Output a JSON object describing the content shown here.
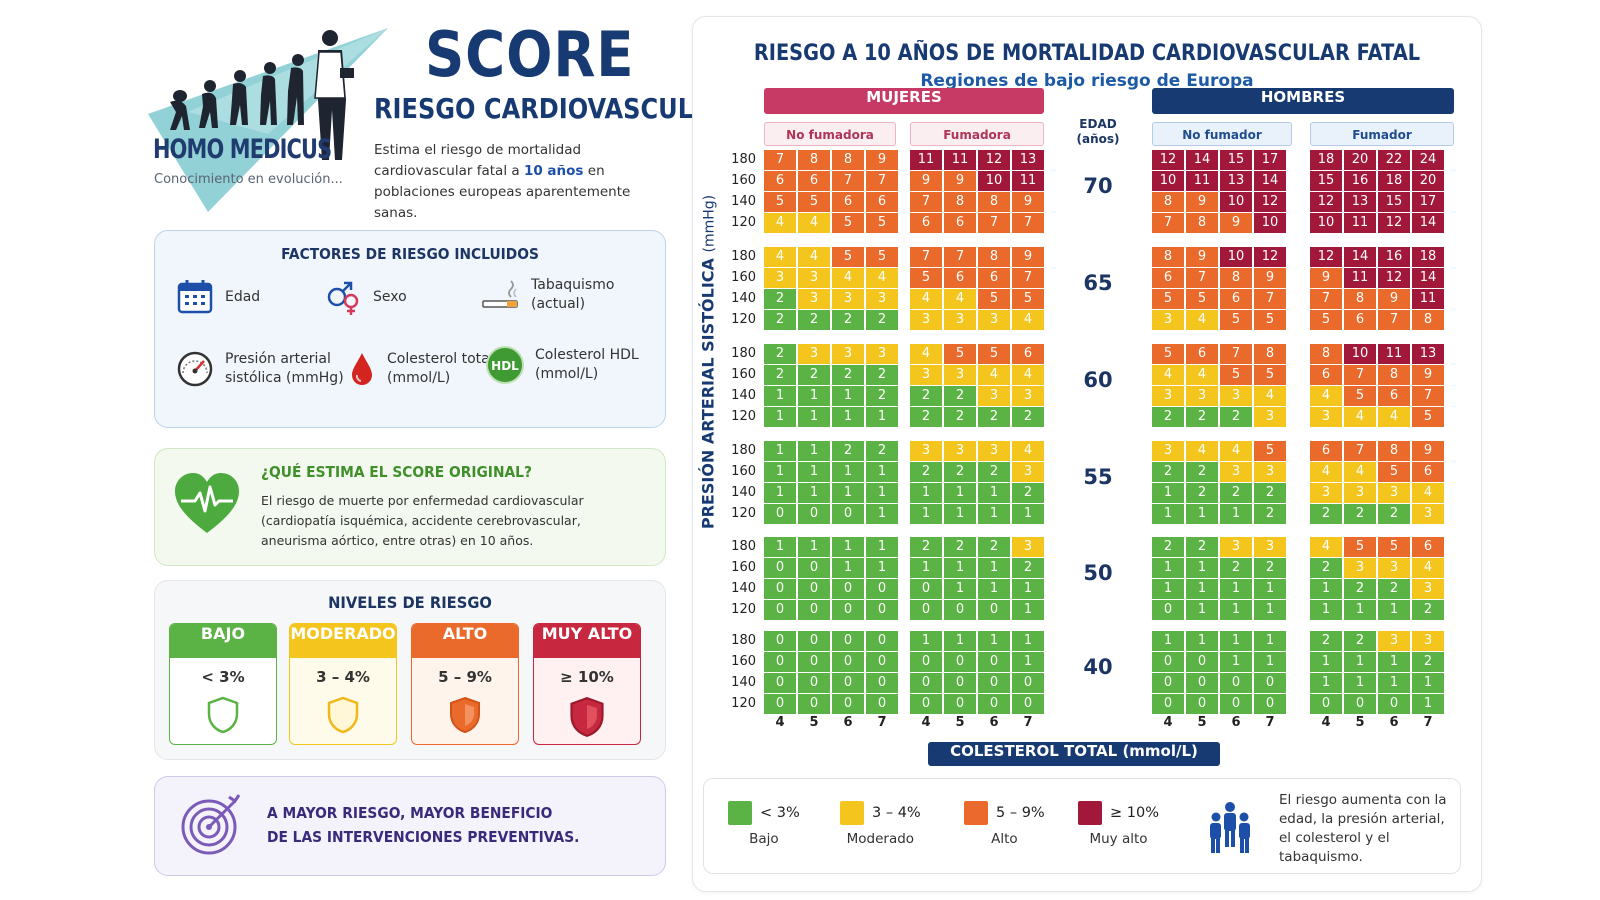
{
  "brand": {
    "name": "HOMO MEDICUS",
    "tagline": "Conocimiento en evolución...",
    "title": "SCORE",
    "subtitle": "RIESGO CARDIOVASCULAR",
    "description_pre": "Estima el riesgo de mortalidad cardiovascular fatal a",
    "description_highlight": "10 años",
    "description_post": "en poblaciones europeas aparentemente sanas."
  },
  "factors": {
    "title": "FACTORES DE RIESGO INCLUIDOS",
    "items": [
      {
        "label": "Edad",
        "icon": "calendar-icon"
      },
      {
        "label": "Sexo",
        "icon": "gender-icon"
      },
      {
        "label": "Tabaquismo\n(actual)",
        "icon": "cigarette-icon"
      },
      {
        "label": "Presión arterial\nsistólica (mmHg)",
        "icon": "gauge-icon"
      },
      {
        "label": "Colesterol total\n(mmol/L)",
        "icon": "blood-drop-icon"
      },
      {
        "label": "Colesterol HDL\n(mmol/L)",
        "icon": "hdl-icon",
        "badge": "HDL"
      }
    ]
  },
  "what": {
    "title": "¿QUÉ ESTIMA EL SCORE ORIGINAL?",
    "text": "El riesgo de muerte por enfermedad cardiovascular (cardiopatía isquémica, accidente cerebrovascular, aneurisma aórtico, entre otras) en 10 años."
  },
  "levels": {
    "title": "NIVELES DE RIESGO",
    "items": [
      {
        "name": "BAJO",
        "range": "< 3%",
        "color": "#5ab344"
      },
      {
        "name": "MODERADO",
        "range": "3 – 4%",
        "color": "#f4c51d"
      },
      {
        "name": "ALTO",
        "range": "5 – 9%",
        "color": "#ea6a2c"
      },
      {
        "name": "MUY ALTO",
        "range": "≥ 10%",
        "color": "#c8283f"
      }
    ]
  },
  "benefit": {
    "line1": "A MAYOR RIESGO, MAYOR BENEFICIO",
    "line2": "DE LAS INTERVENCIONES PREVENTIVAS."
  },
  "panel": {
    "title": "RIESGO A 10 AÑOS DE MORTALIDAD CARDIOVASCULAR FATAL",
    "subtitle": "Regiones de bajo riesgo de Europa",
    "women": "MUJERES",
    "men": "HOMBRES",
    "non_smoker_f": "No fumadora",
    "smoker_f": "Fumadora",
    "non_smoker_m": "No fumador",
    "smoker_m": "Fumador",
    "age_header": "EDAD\n(años)",
    "y_axis": "PRESIÓN ARTERIAL SISTÓLICA",
    "y_axis_unit": "(mmHg)",
    "x_axis": "COLESTEROL TOTAL (mmol/L)",
    "cholesterol": [
      "4",
      "5",
      "6",
      "7"
    ],
    "bp": [
      "180",
      "160",
      "140",
      "120"
    ],
    "ages": [
      "70",
      "65",
      "60",
      "55",
      "50",
      "40"
    ]
  },
  "chart_data": {
    "type": "table",
    "title": "RIESGO A 10 AÑOS DE MORTALIDAD CARDIOVASCULAR FATAL",
    "subtitle": "Regiones de bajo riesgo de Europa",
    "row_axis": "PRESIÓN ARTERIAL SISTÓLICA (mmHg)",
    "col_axis": "COLESTEROL TOTAL (mmol/L)",
    "cholesterol": [
      4,
      5,
      6,
      7
    ],
    "bp": [
      180,
      160,
      140,
      120
    ],
    "color_scale": {
      "<3": "#5ab344",
      "3-4": "#f4c51d",
      "5-9": "#ea6a2c",
      ">=10": "#a1183a"
    },
    "ages": [
      {
        "age": 70,
        "women_non_smoker": [
          [
            7,
            8,
            8,
            9
          ],
          [
            6,
            6,
            7,
            7
          ],
          [
            5,
            5,
            6,
            6
          ],
          [
            4,
            4,
            5,
            5
          ]
        ],
        "women_smoker": [
          [
            11,
            11,
            12,
            13
          ],
          [
            9,
            9,
            10,
            11
          ],
          [
            7,
            8,
            8,
            9
          ],
          [
            6,
            6,
            7,
            7
          ]
        ],
        "men_non_smoker": [
          [
            12,
            14,
            15,
            17
          ],
          [
            10,
            11,
            13,
            14
          ],
          [
            8,
            9,
            10,
            12
          ],
          [
            7,
            8,
            9,
            10
          ]
        ],
        "men_smoker": [
          [
            18,
            20,
            22,
            24
          ],
          [
            15,
            16,
            18,
            20
          ],
          [
            12,
            13,
            15,
            17
          ],
          [
            10,
            11,
            12,
            14
          ]
        ]
      },
      {
        "age": 65,
        "women_non_smoker": [
          [
            4,
            4,
            5,
            5
          ],
          [
            3,
            3,
            4,
            4
          ],
          [
            2,
            3,
            3,
            3
          ],
          [
            2,
            2,
            2,
            2
          ]
        ],
        "women_smoker": [
          [
            7,
            7,
            8,
            9
          ],
          [
            5,
            6,
            6,
            7
          ],
          [
            4,
            4,
            5,
            5
          ],
          [
            3,
            3,
            3,
            4
          ]
        ],
        "men_non_smoker": [
          [
            8,
            9,
            10,
            12
          ],
          [
            6,
            7,
            8,
            9
          ],
          [
            5,
            5,
            6,
            7
          ],
          [
            3,
            4,
            5,
            5
          ]
        ],
        "men_smoker": [
          [
            12,
            14,
            16,
            18
          ],
          [
            9,
            11,
            12,
            14
          ],
          [
            7,
            8,
            9,
            11
          ],
          [
            5,
            6,
            7,
            8
          ]
        ]
      },
      {
        "age": 60,
        "women_non_smoker": [
          [
            2,
            3,
            3,
            3
          ],
          [
            2,
            2,
            2,
            2
          ],
          [
            1,
            1,
            1,
            2
          ],
          [
            1,
            1,
            1,
            1
          ]
        ],
        "women_smoker": [
          [
            4,
            5,
            5,
            6
          ],
          [
            3,
            3,
            4,
            4
          ],
          [
            2,
            2,
            3,
            3
          ],
          [
            2,
            2,
            2,
            2
          ]
        ],
        "men_non_smoker": [
          [
            5,
            6,
            7,
            8
          ],
          [
            4,
            4,
            5,
            5
          ],
          [
            3,
            3,
            3,
            4
          ],
          [
            2,
            2,
            2,
            3
          ]
        ],
        "men_smoker": [
          [
            8,
            10,
            11,
            13
          ],
          [
            6,
            7,
            8,
            9
          ],
          [
            4,
            5,
            6,
            7
          ],
          [
            3,
            4,
            4,
            5
          ]
        ]
      },
      {
        "age": 55,
        "women_non_smoker": [
          [
            1,
            1,
            2,
            2
          ],
          [
            1,
            1,
            1,
            1
          ],
          [
            1,
            1,
            1,
            1
          ],
          [
            0,
            0,
            0,
            1
          ]
        ],
        "women_smoker": [
          [
            3,
            3,
            3,
            4
          ],
          [
            2,
            2,
            2,
            3
          ],
          [
            1,
            1,
            1,
            2
          ],
          [
            1,
            1,
            1,
            1
          ]
        ],
        "men_non_smoker": [
          [
            3,
            4,
            4,
            5
          ],
          [
            2,
            2,
            3,
            3
          ],
          [
            1,
            2,
            2,
            2
          ],
          [
            1,
            1,
            1,
            2
          ]
        ],
        "men_smoker": [
          [
            6,
            7,
            8,
            9
          ],
          [
            4,
            4,
            5,
            6
          ],
          [
            3,
            3,
            3,
            4
          ],
          [
            2,
            2,
            2,
            3
          ]
        ]
      },
      {
        "age": 50,
        "women_non_smoker": [
          [
            1,
            1,
            1,
            1
          ],
          [
            0,
            0,
            1,
            1
          ],
          [
            0,
            0,
            0,
            0
          ],
          [
            0,
            0,
            0,
            0
          ]
        ],
        "women_smoker": [
          [
            2,
            2,
            2,
            3
          ],
          [
            1,
            1,
            1,
            2
          ],
          [
            0,
            1,
            1,
            1
          ],
          [
            0,
            0,
            0,
            1
          ]
        ],
        "men_non_smoker": [
          [
            2,
            2,
            3,
            3
          ],
          [
            1,
            1,
            2,
            2
          ],
          [
            1,
            1,
            1,
            1
          ],
          [
            0,
            1,
            1,
            1
          ]
        ],
        "men_smoker": [
          [
            4,
            5,
            5,
            6
          ],
          [
            2,
            3,
            3,
            4
          ],
          [
            1,
            2,
            2,
            3
          ],
          [
            1,
            1,
            1,
            2
          ]
        ]
      },
      {
        "age": 40,
        "women_non_smoker": [
          [
            0,
            0,
            0,
            0
          ],
          [
            0,
            0,
            0,
            0
          ],
          [
            0,
            0,
            0,
            0
          ],
          [
            0,
            0,
            0,
            0
          ]
        ],
        "women_smoker": [
          [
            1,
            1,
            1,
            1
          ],
          [
            0,
            0,
            0,
            1
          ],
          [
            0,
            0,
            0,
            0
          ],
          [
            0,
            0,
            0,
            0
          ]
        ],
        "men_non_smoker": [
          [
            1,
            1,
            1,
            1
          ],
          [
            0,
            0,
            1,
            1
          ],
          [
            0,
            0,
            0,
            0
          ],
          [
            0,
            0,
            0,
            0
          ]
        ],
        "men_smoker": [
          [
            2,
            2,
            3,
            3
          ],
          [
            1,
            1,
            1,
            2
          ],
          [
            1,
            1,
            1,
            1
          ],
          [
            0,
            0,
            0,
            1
          ]
        ]
      }
    ]
  },
  "legend": {
    "items": [
      {
        "range": "< 3%",
        "label": "Bajo",
        "color": "#5ab344"
      },
      {
        "range": "3 – 4%",
        "label": "Moderado",
        "color": "#f4c51d"
      },
      {
        "range": "5 – 9%",
        "label": "Alto",
        "color": "#ea6a2c"
      },
      {
        "range": "≥ 10%",
        "label": "Muy alto",
        "color": "#a1183a"
      }
    ],
    "note": "El riesgo aumenta con la edad, la presión arterial, el colesterol y el tabaquismo."
  }
}
